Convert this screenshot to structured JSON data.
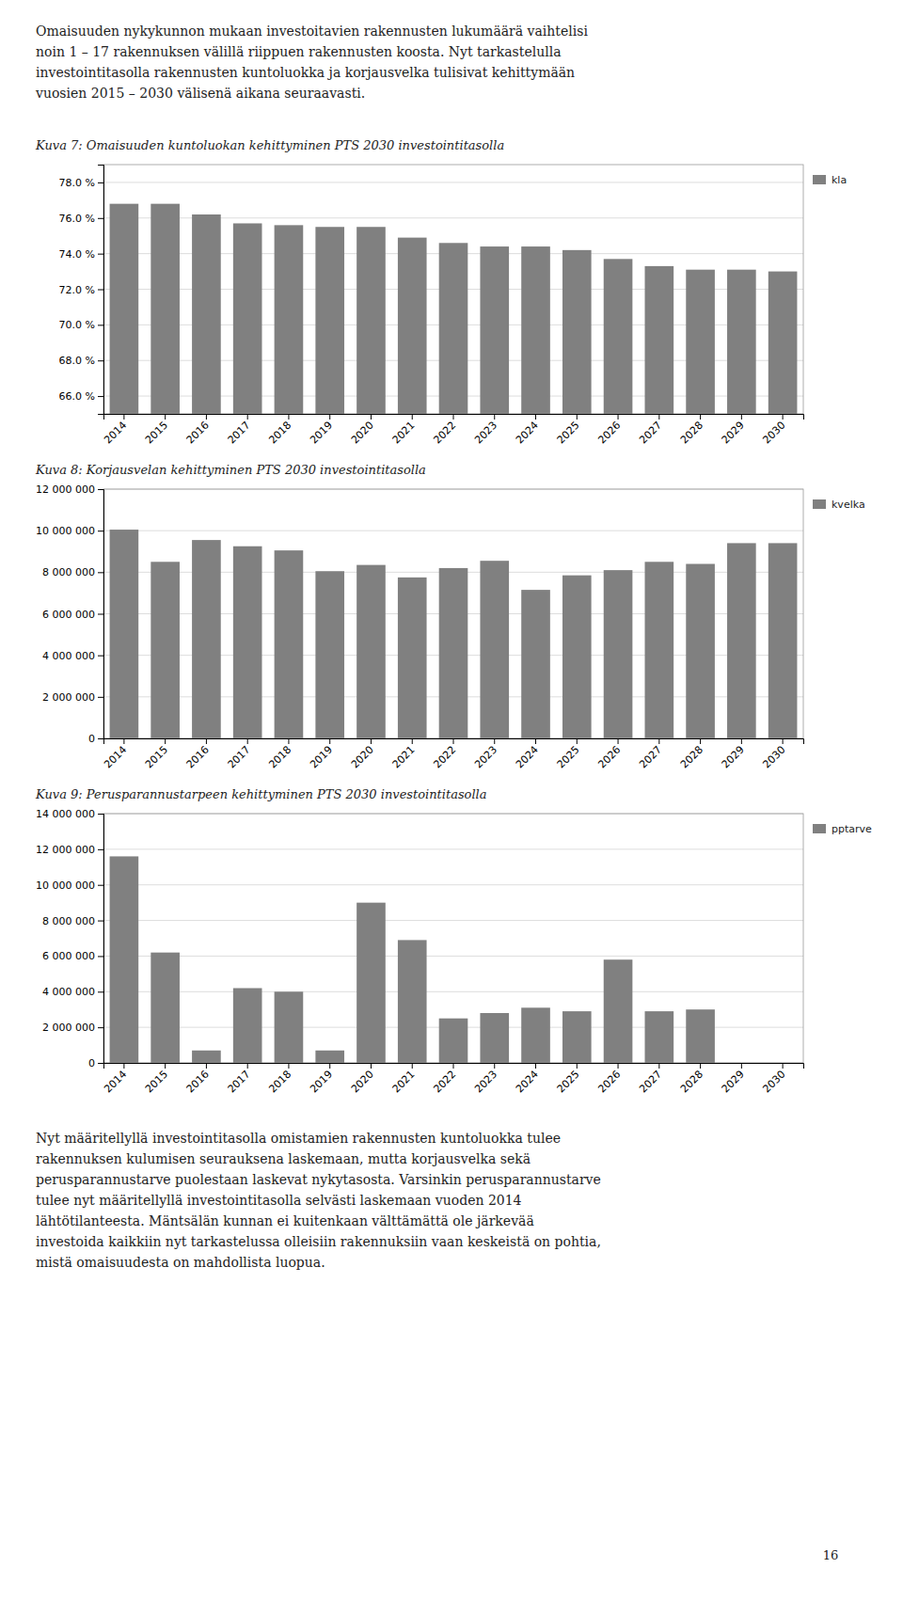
{
  "intro_text": "Omaisuuden nykykunnon mukaan investoitavien rakennusten lukumäärä vaihtelisi\nnoin 1 – 17 rakennuksen välillä riippuen rakennusten koosta. Nyt tarkastelulla\ninvestointitasolla rakennusten kuntoluokka ja korjausvelka tulisivat kehittymään\nvuosien 2015 – 2030 välisenä aikana seuraavasti.",
  "outro_text": "Nyt määritellyllä investointitasolla omistamien rakennusten kuntoluokka tulee\nrakennuksen kulumisen seurauksena laskemaan, mutta korjausvelka sekä\nperusparannustarve puolestaan laskevat nykytasosta. Varsinkin perusparannustarve\ntulee nyt määritellyllä investointitasolla selvästi laskemaan vuoden 2014\nlähtötilanteesta. Mäntsälän kunnan ei kuitenkaan välttämättä ole järkevää\ninvestoida kaikkiin nyt tarkastelussa olleisiin rakennuksiin vaan keskeistä on pohtia,\nmistä omaisuudesta on mahdollista luopua.",
  "page_number": "16",
  "chart_data": [
    {
      "type": "bar",
      "title": "Kuva 7: Omaisuuden kuntoluokan kehittyminen PTS 2030 investointitasolla",
      "categories": [
        "2014",
        "2015",
        "2016",
        "2017",
        "2018",
        "2019",
        "2020",
        "2021",
        "2022",
        "2023",
        "2024",
        "2025",
        "2026",
        "2027",
        "2028",
        "2029",
        "2030"
      ],
      "series": [
        {
          "name": "kla",
          "color": "#808080",
          "values": [
            0.768,
            0.768,
            0.762,
            0.757,
            0.756,
            0.755,
            0.755,
            0.749,
            0.746,
            0.744,
            0.744,
            0.742,
            0.737,
            0.733,
            0.731,
            0.731,
            0.73
          ]
        }
      ],
      "ylim": [
        0.65,
        0.79
      ],
      "yticks": [
        {
          "value": 0.66,
          "label": "66.0 %"
        },
        {
          "value": 0.68,
          "label": "68.0 %"
        },
        {
          "value": 0.7,
          "label": "70.0 %"
        },
        {
          "value": 0.72,
          "label": "72.0 %"
        },
        {
          "value": 0.74,
          "label": "74.0 %"
        },
        {
          "value": 0.76,
          "label": "76.0 %"
        },
        {
          "value": 0.78,
          "label": "78.0 %"
        }
      ],
      "grid": true,
      "legend": "right"
    },
    {
      "type": "bar",
      "title": "Kuva 8: Korjausvelan kehittyminen PTS 2030 investointitasolla",
      "categories": [
        "2014",
        "2015",
        "2016",
        "2017",
        "2018",
        "2019",
        "2020",
        "2021",
        "2022",
        "2023",
        "2024",
        "2025",
        "2026",
        "2027",
        "2028",
        "2029",
        "2030"
      ],
      "series": [
        {
          "name": "kvelka",
          "color": "#808080",
          "values": [
            10050000,
            8500000,
            9550000,
            9250000,
            9050000,
            8050000,
            8350000,
            7750000,
            8200000,
            8550000,
            7150000,
            7850000,
            8100000,
            8500000,
            8400000,
            9400000,
            9400000
          ]
        }
      ],
      "ylim": [
        0,
        12000000
      ],
      "yticks": [
        0,
        {
          "value": 2000000,
          "label": "2 000 000"
        },
        {
          "value": 4000000,
          "label": "4 000 000"
        },
        {
          "value": 6000000,
          "label": "6 000 000"
        },
        {
          "value": 8000000,
          "label": "8 000 000"
        },
        {
          "value": 10000000,
          "label": "10 000 000"
        },
        {
          "value": 12000000,
          "label": "12 000 000"
        }
      ],
      "grid": true,
      "legend": "right"
    },
    {
      "type": "bar",
      "title": "Kuva 9: Perusparannustarpeen kehittyminen PTS 2030 investointitasolla",
      "categories": [
        "2014",
        "2015",
        "2016",
        "2017",
        "2018",
        "2019",
        "2020",
        "2021",
        "2022",
        "2023",
        "2024",
        "2025",
        "2026",
        "2027",
        "2028",
        "2029",
        "2030"
      ],
      "series": [
        {
          "name": "pptarve",
          "color": "#808080",
          "values": [
            11600000,
            6200000,
            700000,
            4200000,
            4000000,
            700000,
            9000000,
            6900000,
            2500000,
            2800000,
            3100000,
            2900000,
            5800000,
            2900000,
            3000000,
            0,
            0
          ]
        }
      ],
      "ylim": [
        0,
        14000000
      ],
      "yticks": [
        0,
        {
          "value": 2000000,
          "label": "2 000 000"
        },
        {
          "value": 4000000,
          "label": "4 000 000"
        },
        {
          "value": 6000000,
          "label": "6 000 000"
        },
        {
          "value": 8000000,
          "label": "8 000 000"
        },
        {
          "value": 10000000,
          "label": "10 000 000"
        },
        {
          "value": 12000000,
          "label": "12 000 000"
        },
        {
          "value": 14000000,
          "label": "14 000 000"
        }
      ],
      "grid": true,
      "legend": "right"
    }
  ]
}
